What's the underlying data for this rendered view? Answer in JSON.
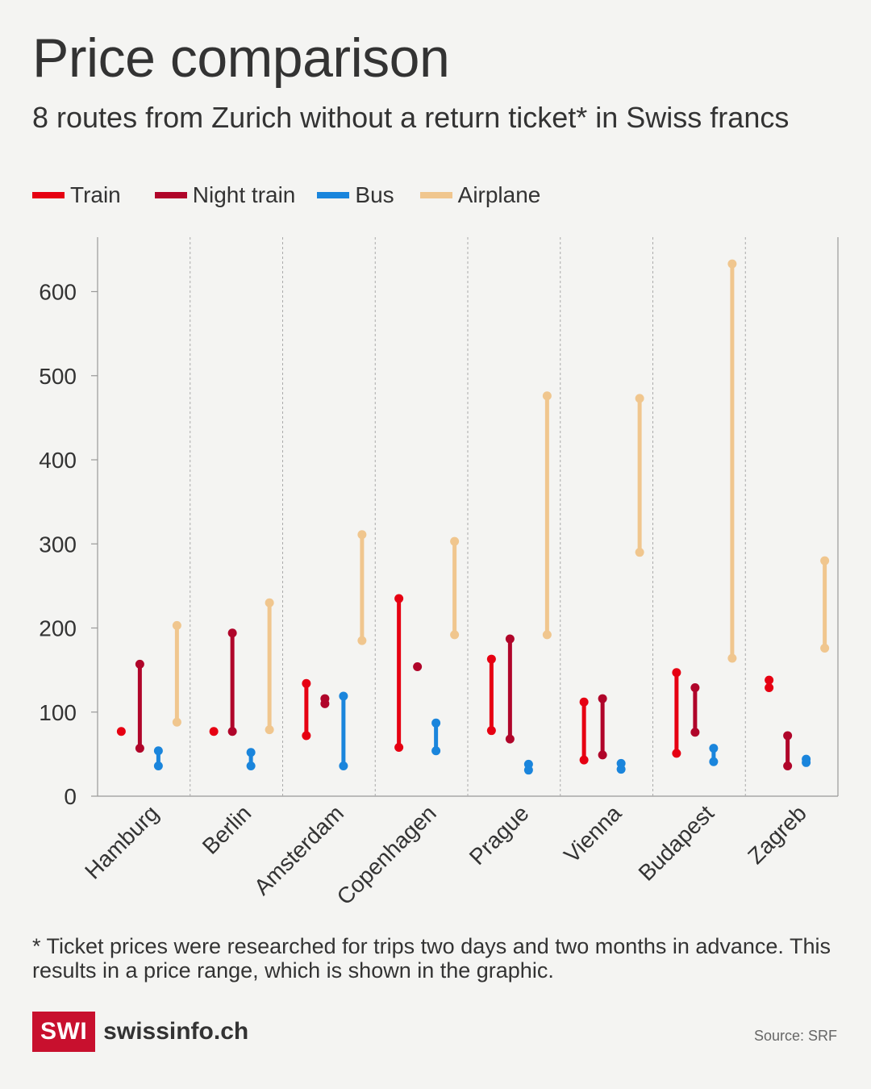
{
  "title": "Price comparison",
  "subtitle": "8 routes from Zurich without a return ticket* in Swiss francs",
  "legend": [
    {
      "label": "Train",
      "color": "#e60012"
    },
    {
      "label": "Night train",
      "color": "#b0052a"
    },
    {
      "label": "Bus",
      "color": "#1a85dc"
    },
    {
      "label": "Airplane",
      "color": "#f0c68e"
    }
  ],
  "footnote": "* Ticket prices were researched for trips two days and two months in advance. This results in a price range, which is shown in the graphic.",
  "logo": {
    "mark": "SWI",
    "text": "swissinfo.ch"
  },
  "source": "Source: SRF",
  "chart_data": {
    "type": "range",
    "title": "Price comparison",
    "ylabel": "Swiss francs",
    "ylim": [
      0,
      650
    ],
    "yticks": [
      0,
      100,
      200,
      300,
      400,
      500,
      600
    ],
    "categories": [
      "Hamburg",
      "Berlin",
      "Amsterdam",
      "Copenhagen",
      "Prague",
      "Vienna",
      "Budapest",
      "Zagreb"
    ],
    "series": [
      {
        "name": "Train",
        "color": "#e60012",
        "ranges": [
          [
            77,
            77
          ],
          [
            77,
            77
          ],
          [
            72,
            134
          ],
          [
            58,
            235
          ],
          [
            78,
            163
          ],
          [
            43,
            112
          ],
          [
            51,
            147
          ],
          [
            129,
            138
          ]
        ]
      },
      {
        "name": "Night train",
        "color": "#b0052a",
        "ranges": [
          [
            57,
            157
          ],
          [
            77,
            194
          ],
          [
            110,
            116
          ],
          [
            154,
            154
          ],
          [
            68,
            187
          ],
          [
            49,
            116
          ],
          [
            76,
            129
          ],
          [
            36,
            72
          ]
        ]
      },
      {
        "name": "Bus",
        "color": "#1a85dc",
        "ranges": [
          [
            36,
            54
          ],
          [
            36,
            52
          ],
          [
            36,
            119
          ],
          [
            54,
            87
          ],
          [
            31,
            38
          ],
          [
            32,
            39
          ],
          [
            41,
            57
          ],
          [
            40,
            44
          ]
        ]
      },
      {
        "name": "Airplane",
        "color": "#f0c68e",
        "ranges": [
          [
            88,
            203
          ],
          [
            79,
            230
          ],
          [
            185,
            311
          ],
          [
            192,
            303
          ],
          [
            192,
            476
          ],
          [
            290,
            473
          ],
          [
            164,
            633
          ],
          [
            176,
            280
          ]
        ]
      }
    ]
  }
}
